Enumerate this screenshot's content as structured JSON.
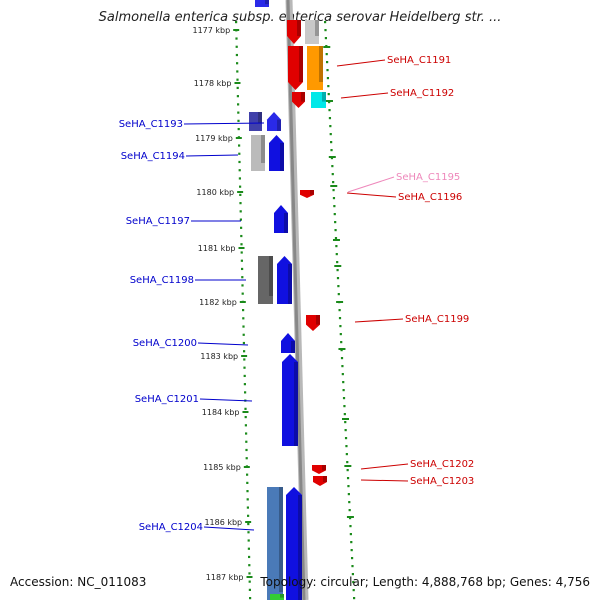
{
  "title": "Salmonella enterica subsp. enterica serovar Heidelberg str. ...",
  "accession": "Accession: NC_011083",
  "topology": "Topology: circular; Length: 4,888,768 bp; Genes: 4,756",
  "colors": {
    "forward_label": "#0000cc",
    "reverse_label": "#cc0000",
    "faded_label": "#ee88bb",
    "backbone": "#888888",
    "tick": "#1a8a1a"
  },
  "map": {
    "kbp_ticks": [
      "1177 kbp",
      "1178 kbp",
      "1179 kbp",
      "1180 kbp",
      "1181 kbp",
      "1182 kbp",
      "1183 kbp",
      "1184 kbp",
      "1185 kbp",
      "1186 kbp",
      "1187 kbp"
    ],
    "forward_labels": [
      "SeHA_C1193",
      "SeHA_C1194",
      "SeHA_C1197",
      "SeHA_C1198",
      "SeHA_C1200",
      "SeHA_C1201",
      "SeHA_C1204"
    ],
    "reverse_labels": [
      "SeHA_C1191",
      "SeHA_C1192",
      "SeHA_C1195",
      "SeHA_C1196",
      "SeHA_C1199",
      "SeHA_C1202",
      "SeHA_C1203"
    ]
  }
}
